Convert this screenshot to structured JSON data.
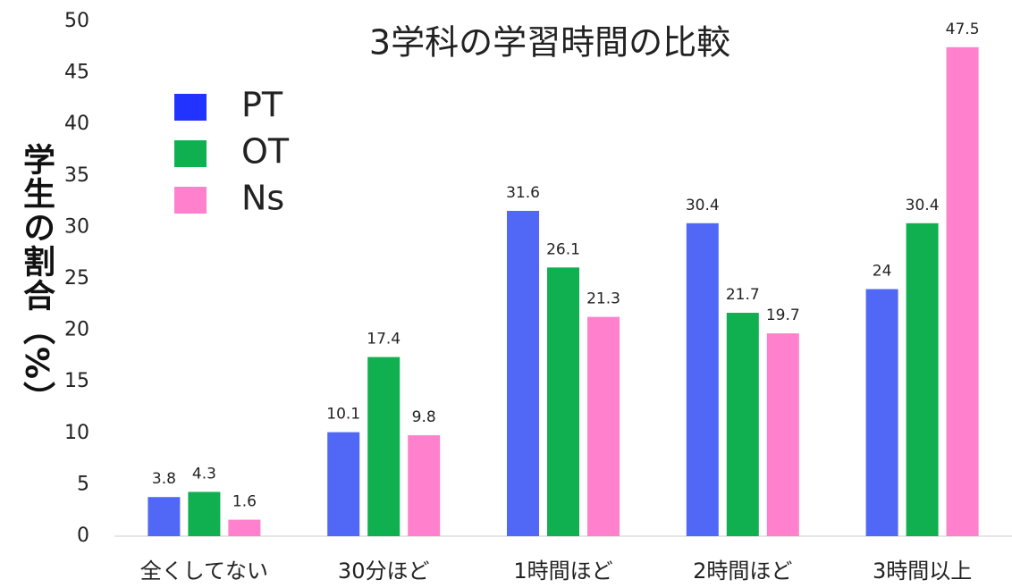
{
  "chart_data": {
    "type": "bar",
    "title": "3学科の学習時間の比較",
    "y_label": "学生の割合（%）",
    "categories": [
      "全くしてない",
      "30分ほど",
      "1時間ほど",
      "2時間ほど",
      "3時間以上"
    ],
    "series": [
      {
        "name": "PT",
        "color": "#5068f5",
        "legend_color": "#2233ff",
        "values": [
          3.8,
          10.1,
          31.6,
          30.4,
          24
        ]
      },
      {
        "name": "OT",
        "color": "#10b050",
        "legend_color": "#10b050",
        "values": [
          4.3,
          17.4,
          26.1,
          21.7,
          30.4
        ]
      },
      {
        "name": "Ns",
        "color": "#ff80cc",
        "legend_color": "#ff80cc",
        "values": [
          1.6,
          9.8,
          21.3,
          19.7,
          47.5
        ]
      }
    ],
    "ylim": [
      0,
      50
    ],
    "yticks": [
      0,
      5,
      10,
      15,
      20,
      25,
      30,
      35,
      40,
      45,
      50
    ],
    "grid": false,
    "legend": "upper left"
  }
}
